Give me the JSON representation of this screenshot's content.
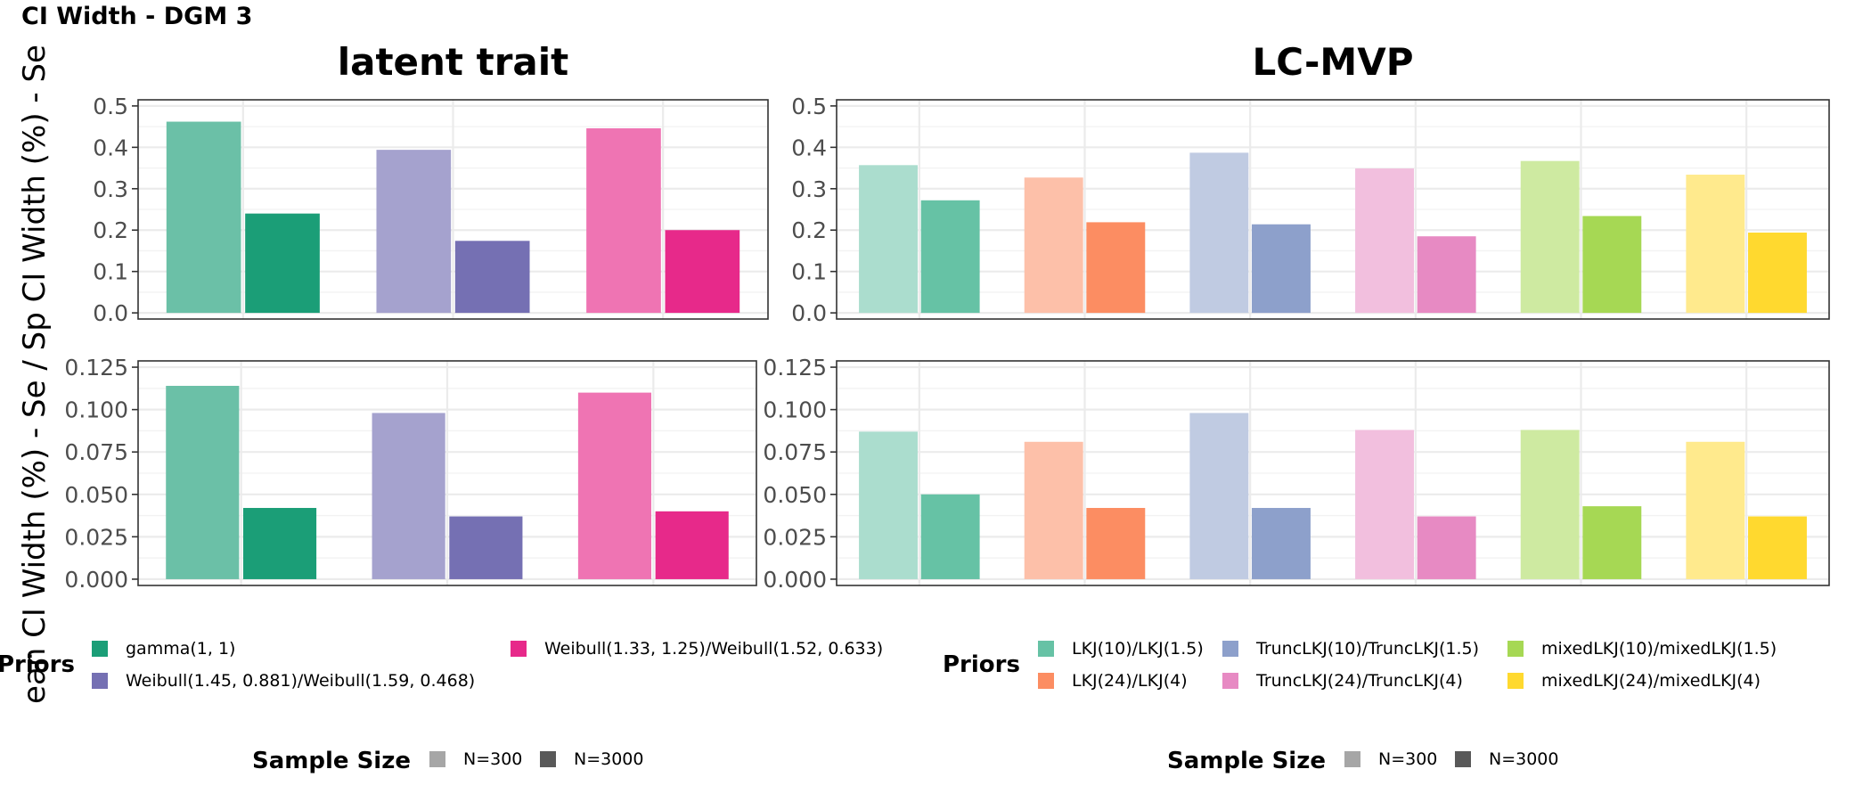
{
  "figure_title": "CI Width - DGM 3",
  "y_axis_label": "ean CI Width (%) - Se / Sp CI Width (%) - Se",
  "colors": {
    "gamma(1, 1)": "#1b9e77",
    "Weibull(1.45, 0.881)/Weibull(1.59, 0.468)": "#7570b3",
    "Weibull(1.33, 1.25)/Weibull(1.52, 0.633)": "#e7298a",
    "LKJ(10)/LKJ(1.5)": "#66c2a5",
    "LKJ(24)/LKJ(4)": "#fc8d62",
    "TruncLKJ(10)/TruncLKJ(1.5)": "#8da0cb",
    "TruncLKJ(24)/TruncLKJ(4)": "#e78ac3",
    "mixedLKJ(10)/mixedLKJ(1.5)": "#a6d854",
    "mixedLKJ(24)/mixedLKJ(4)": "#ffd92f"
  },
  "chart_data": [
    {
      "type": "bar",
      "title": "latent trait",
      "panel": "top-left",
      "categories": [
        "gamma(1, 1)",
        "Weibull(1.45, 0.881)/Weibull(1.59, 0.468)",
        "Weibull(1.33, 1.25)/Weibull(1.52, 0.633)"
      ],
      "series": [
        {
          "name": "N=300",
          "values": [
            0.462,
            0.394,
            0.446
          ]
        },
        {
          "name": "N=3000",
          "values": [
            0.24,
            0.174,
            0.2
          ]
        }
      ],
      "ylim": [
        0,
        0.5
      ],
      "yticks": [
        0.0,
        0.1,
        0.2,
        0.3,
        0.4,
        0.5
      ],
      "tick_labels": [
        "0.0",
        "0.1",
        "0.2",
        "0.3",
        "0.4",
        "0.5"
      ]
    },
    {
      "type": "bar",
      "title": "LC-MVP",
      "panel": "top-right",
      "categories": [
        "LKJ(10)/LKJ(1.5)",
        "LKJ(24)/LKJ(4)",
        "TruncLKJ(10)/TruncLKJ(1.5)",
        "TruncLKJ(24)/TruncLKJ(4)",
        "mixedLKJ(10)/mixedLKJ(1.5)",
        "mixedLKJ(24)/mixedLKJ(4)"
      ],
      "series": [
        {
          "name": "N=300",
          "values": [
            0.357,
            0.327,
            0.387,
            0.349,
            0.367,
            0.334
          ]
        },
        {
          "name": "N=3000",
          "values": [
            0.272,
            0.219,
            0.214,
            0.185,
            0.234,
            0.194
          ]
        }
      ],
      "ylim": [
        0,
        0.5
      ],
      "yticks": [
        0.0,
        0.1,
        0.2,
        0.3,
        0.4,
        0.5
      ],
      "tick_labels": [
        "0.0",
        "0.1",
        "0.2",
        "0.3",
        "0.4",
        "0.5"
      ]
    },
    {
      "type": "bar",
      "title": "",
      "panel": "bottom-left",
      "categories": [
        "gamma(1, 1)",
        "Weibull(1.45, 0.881)/Weibull(1.59, 0.468)",
        "Weibull(1.33, 1.25)/Weibull(1.52, 0.633)"
      ],
      "series": [
        {
          "name": "N=300",
          "values": [
            0.114,
            0.098,
            0.11
          ]
        },
        {
          "name": "N=3000",
          "values": [
            0.042,
            0.037,
            0.04
          ]
        }
      ],
      "ylim": [
        0,
        0.125
      ],
      "yticks": [
        0.0,
        0.025,
        0.05,
        0.075,
        0.1,
        0.125
      ],
      "tick_labels": [
        "0.000",
        "0.025",
        "0.050",
        "0.075",
        "0.100",
        "0.125"
      ]
    },
    {
      "type": "bar",
      "title": "",
      "panel": "bottom-right",
      "categories": [
        "LKJ(10)/LKJ(1.5)",
        "LKJ(24)/LKJ(4)",
        "TruncLKJ(10)/TruncLKJ(1.5)",
        "TruncLKJ(24)/TruncLKJ(4)",
        "mixedLKJ(10)/mixedLKJ(1.5)",
        "mixedLKJ(24)/mixedLKJ(4)"
      ],
      "series": [
        {
          "name": "N=300",
          "values": [
            0.087,
            0.081,
            0.098,
            0.088,
            0.088,
            0.081
          ]
        },
        {
          "name": "N=3000",
          "values": [
            0.05,
            0.042,
            0.042,
            0.037,
            0.043,
            0.037
          ]
        }
      ],
      "ylim": [
        0,
        0.125
      ],
      "yticks": [
        0.0,
        0.025,
        0.05,
        0.075,
        0.1,
        0.125
      ],
      "tick_labels": [
        "0.000",
        "0.025",
        "0.050",
        "0.075",
        "0.100",
        "0.125"
      ]
    }
  ],
  "legends": {
    "left_priors": {
      "title": "Priors",
      "items": [
        "gamma(1, 1)",
        "Weibull(1.45, 0.881)/Weibull(1.59, 0.468)",
        "Weibull(1.33, 1.25)/Weibull(1.52, 0.633)"
      ]
    },
    "right_priors": {
      "title": "Priors",
      "items": [
        "LKJ(10)/LKJ(1.5)",
        "LKJ(24)/LKJ(4)",
        "TruncLKJ(10)/TruncLKJ(1.5)",
        "TruncLKJ(24)/TruncLKJ(4)",
        "mixedLKJ(10)/mixedLKJ(1.5)",
        "mixedLKJ(24)/mixedLKJ(4)"
      ]
    },
    "sample_size": {
      "title": "Sample Size",
      "items": [
        "N=300",
        "N=3000"
      ],
      "colors": [
        "#a6a6a6",
        "#595959"
      ]
    }
  }
}
